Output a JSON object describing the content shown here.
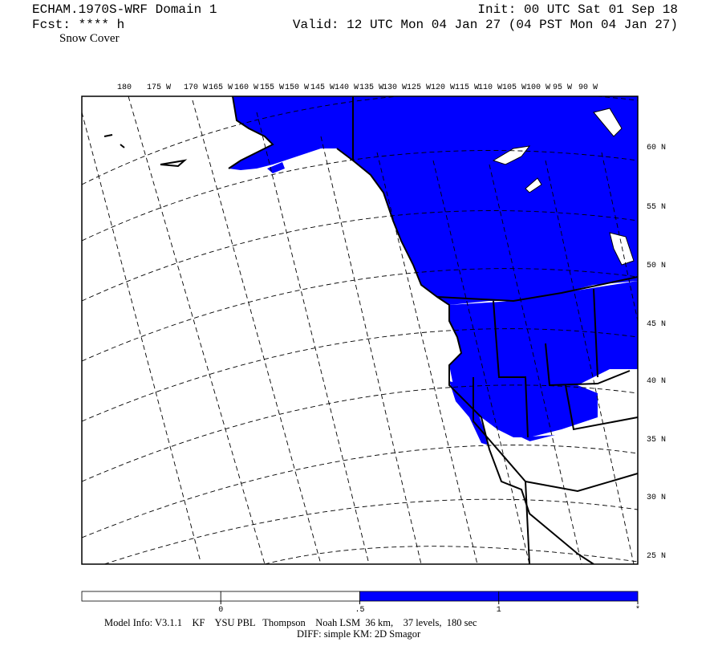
{
  "header": {
    "title": "ECHAM.1970S-WRF Domain 1",
    "forecast": "Fcst: **** h",
    "field": "Snow Cover",
    "init": "Init: 00 UTC Sat 01 Sep 18",
    "valid": "Valid: 12 UTC Mon 04 Jan 27 (04 PST Mon 04 Jan 27)"
  },
  "map": {
    "longitude_labels": [
      "180",
      "175 W",
      "170 W",
      "165 W",
      "160 W",
      "155 W",
      "150 W",
      "145 W",
      "140 W",
      "135 W",
      "130 W",
      "125 W",
      "120 W",
      "115 W",
      "110 W",
      "105 W",
      "100 W",
      "95 W",
      "90 W"
    ],
    "latitude_labels": [
      "60 N",
      "55 N",
      "50 N",
      "45 N",
      "40 N",
      "35 N",
      "30 N",
      "25 N"
    ],
    "snow_color": "#0000ff"
  },
  "colorbar": {
    "labels": [
      "0",
      ".5",
      "1",
      "*"
    ],
    "colors": [
      "#ffffff",
      "#ffffff",
      "#0000ff",
      "#0000ff"
    ]
  },
  "footer": {
    "model_info": "Model Info: V3.1.1    KF    YSU PBL   Thompson    Noah LSM  36 km,    37 levels,  180 sec",
    "diff": "DIFF: simple KM: 2D Smagor"
  }
}
